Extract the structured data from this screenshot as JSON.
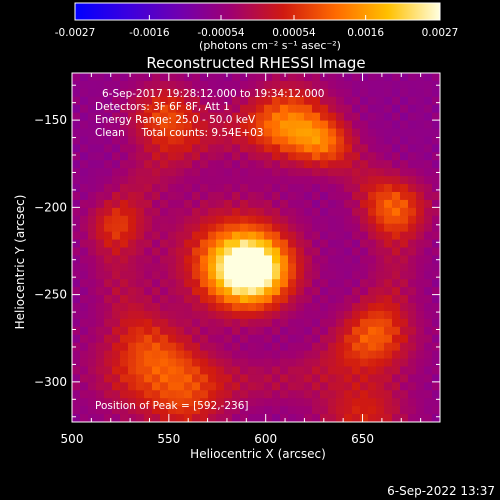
{
  "colorbar": {
    "ticks": [
      "-0.0027",
      "-0.0016",
      "-0.00054",
      "0.00054",
      "0.0016",
      "0.0027"
    ],
    "tick_values": [
      -0.0027,
      -0.0016,
      -0.00054,
      0.00054,
      0.0016,
      0.0027
    ],
    "range": [
      -0.0027,
      0.0027
    ],
    "units": "(photons cm⁻² s⁻¹ asec⁻²)",
    "colors": [
      "#0000ff",
      "#3a00e0",
      "#7000b0",
      "#a00070",
      "#d01a10",
      "#ff6a00",
      "#ffc000",
      "#ffffe0"
    ]
  },
  "chart_data": {
    "type": "heatmap",
    "title": "Reconstructed RHESSI Image",
    "xlabel": "Heliocentric X (arcsec)",
    "ylabel": "Heliocentric Y (arcsec)",
    "xlim": [
      500,
      690
    ],
    "ylim": [
      -323,
      -123
    ],
    "xticks": [
      "500",
      "550",
      "600",
      "650"
    ],
    "xtick_values": [
      500,
      550,
      600,
      650
    ],
    "yticks": [
      "−150",
      "−200",
      "−250",
      "−300"
    ],
    "ytick_values": [
      -150,
      -200,
      -250,
      -300
    ],
    "grid": false,
    "peak": [
      592,
      -236
    ],
    "annotations": [
      "6-Sep-2017 19:28:12.000 to 19:34:12.000",
      "Detectors: 3F 6F 8F, Att 1",
      "Energy Range: 25.0 - 50.0 keV",
      "Clean     Total counts: 9.54E+03",
      "Position of Peak = [592,-236]"
    ]
  },
  "footer": {
    "timestamp": "6-Sep-2022 13:37"
  }
}
